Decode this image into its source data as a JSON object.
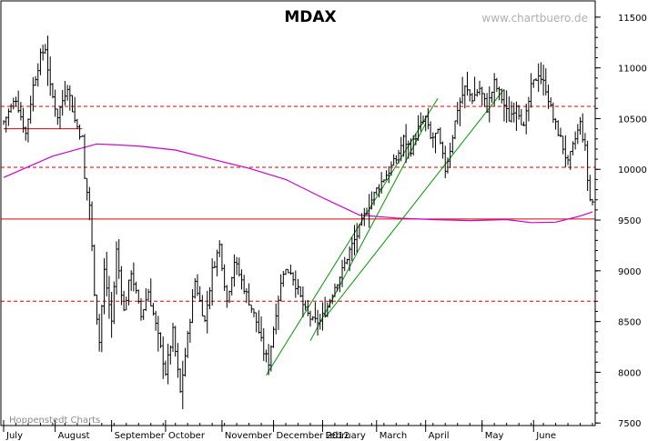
{
  "chart_data": {
    "type": "ohlc-bar",
    "title": "MDAX",
    "watermark": "www.chartbuero.de",
    "source": "Hoppenstedt Charts",
    "y_ticks": [
      11500,
      11000,
      10500,
      10000,
      9500,
      9000,
      8500,
      8000,
      7500
    ],
    "ylim": [
      7475,
      11660
    ],
    "x_labels": [
      "July",
      "August",
      "September",
      "October",
      "November",
      "December 2012",
      "February",
      "March",
      "April",
      "May",
      "June"
    ],
    "trading_days": 240,
    "colors": {
      "price": "#000000",
      "moving_average": "#cc00cc",
      "levels": "#dd0000",
      "trendlines": "#009900",
      "frame": "#000000"
    },
    "moving_average": [
      [
        0,
        9920
      ],
      [
        20,
        10130
      ],
      [
        38,
        10250
      ],
      [
        55,
        10230
      ],
      [
        70,
        10190
      ],
      [
        85,
        10100
      ],
      [
        100,
        10010
      ],
      [
        115,
        9900
      ],
      [
        130,
        9720
      ],
      [
        145,
        9550
      ],
      [
        160,
        9520
      ],
      [
        175,
        9505
      ],
      [
        190,
        9495
      ],
      [
        205,
        9505
      ],
      [
        215,
        9475
      ],
      [
        225,
        9480
      ],
      [
        235,
        9540
      ],
      [
        240,
        9580
      ]
    ],
    "horizontal_levels": [
      {
        "value": 10620,
        "style": "dashed"
      },
      {
        "value": 10020,
        "style": "dashed"
      },
      {
        "value": 9510,
        "style": "solid"
      },
      {
        "value": 8700,
        "style": "dashed"
      },
      {
        "value": 10400,
        "style": "solid-short",
        "from_day": 0,
        "to_day": 32
      }
    ],
    "trendlines": [
      {
        "from": [
          107,
          7970
        ],
        "to": [
          177,
          10700
        ]
      },
      {
        "from": [
          125,
          8310
        ],
        "to": [
          172,
          10450
        ]
      },
      {
        "from": [
          131,
          8540
        ],
        "to": [
          204,
          10790
        ]
      }
    ],
    "price_anchors": [
      [
        0,
        10470
      ],
      [
        5,
        10700
      ],
      [
        9,
        10350
      ],
      [
        12,
        10820
      ],
      [
        15,
        11110
      ],
      [
        17,
        11200
      ],
      [
        19,
        10800
      ],
      [
        22,
        10530
      ],
      [
        26,
        10830
      ],
      [
        29,
        10480
      ],
      [
        32,
        10300
      ],
      [
        33,
        9900
      ],
      [
        35,
        9650
      ],
      [
        37,
        8800
      ],
      [
        39,
        8300
      ],
      [
        41,
        9000
      ],
      [
        44,
        8500
      ],
      [
        46,
        9200
      ],
      [
        49,
        8600
      ],
      [
        52,
        9000
      ],
      [
        56,
        8550
      ],
      [
        59,
        8800
      ],
      [
        63,
        8350
      ],
      [
        66,
        8000
      ],
      [
        69,
        8400
      ],
      [
        72,
        7800
      ],
      [
        75,
        8350
      ],
      [
        78,
        8900
      ],
      [
        82,
        8500
      ],
      [
        85,
        9000
      ],
      [
        88,
        9250
      ],
      [
        91,
        8700
      ],
      [
        94,
        9100
      ],
      [
        97,
        8900
      ],
      [
        100,
        8700
      ],
      [
        103,
        8500
      ],
      [
        106,
        8200
      ],
      [
        108,
        8100
      ],
      [
        111,
        8600
      ],
      [
        114,
        9000
      ],
      [
        117,
        9000
      ],
      [
        120,
        8800
      ],
      [
        123,
        8600
      ],
      [
        126,
        8500
      ],
      [
        129,
        8500
      ],
      [
        132,
        8650
      ],
      [
        135,
        8850
      ],
      [
        138,
        9000
      ],
      [
        141,
        9200
      ],
      [
        144,
        9350
      ],
      [
        148,
        9600
      ],
      [
        152,
        9800
      ],
      [
        156,
        9950
      ],
      [
        160,
        10100
      ],
      [
        163,
        10300
      ],
      [
        166,
        10200
      ],
      [
        169,
        10400
      ],
      [
        172,
        10500
      ],
      [
        174,
        10300
      ],
      [
        177,
        10350
      ],
      [
        180,
        10000
      ],
      [
        182,
        10200
      ],
      [
        185,
        10600
      ],
      [
        188,
        10800
      ],
      [
        191,
        10700
      ],
      [
        194,
        10800
      ],
      [
        197,
        10600
      ],
      [
        200,
        10850
      ],
      [
        203,
        10700
      ],
      [
        206,
        10500
      ],
      [
        209,
        10650
      ],
      [
        212,
        10400
      ],
      [
        215,
        10800
      ],
      [
        218,
        10950
      ],
      [
        221,
        10800
      ],
      [
        224,
        10500
      ],
      [
        227,
        10300
      ],
      [
        230,
        10050
      ],
      [
        233,
        10300
      ],
      [
        235,
        10450
      ],
      [
        237,
        10200
      ],
      [
        238,
        9900
      ],
      [
        239,
        9700
      ],
      [
        240,
        9680
      ]
    ]
  }
}
